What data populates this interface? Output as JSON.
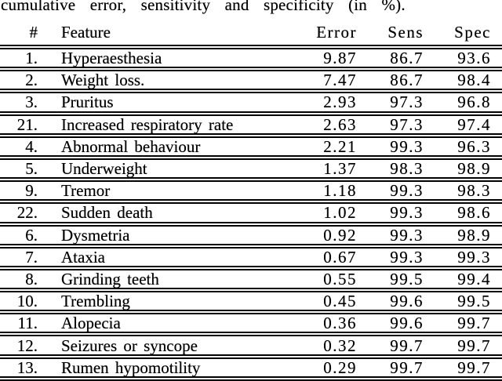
{
  "caption": "cumulative error, sensitivity and specificity (in %).",
  "table": {
    "columns": [
      "#",
      "Feature",
      "Error",
      "Sens",
      "Spec"
    ],
    "rows": [
      {
        "num": "1.",
        "feature": "Hyperaesthesia",
        "error": "9.87",
        "sens": "86.7",
        "spec": "93.6"
      },
      {
        "num": "2.",
        "feature": "Weight loss.",
        "error": "7.47",
        "sens": "86.7",
        "spec": "98.4"
      },
      {
        "num": "3.",
        "feature": "Pruritus",
        "error": "2.93",
        "sens": "97.3",
        "spec": "96.8"
      },
      {
        "num": "21.",
        "feature": "Increased respiratory rate",
        "error": "2.63",
        "sens": "97.3",
        "spec": "97.4"
      },
      {
        "num": "4.",
        "feature": "Abnormal behaviour",
        "error": "2.21",
        "sens": "99.3",
        "spec": "96.3"
      },
      {
        "num": "5.",
        "feature": "Underweight",
        "error": "1.37",
        "sens": "98.3",
        "spec": "98.9"
      },
      {
        "num": "9.",
        "feature": "Tremor",
        "error": "1.18",
        "sens": "99.3",
        "spec": "98.3"
      },
      {
        "num": "22.",
        "feature": "Sudden death",
        "error": "1.02",
        "sens": "99.3",
        "spec": "98.6"
      },
      {
        "num": "6.",
        "feature": "Dysmetria",
        "error": "0.92",
        "sens": "99.3",
        "spec": "98.9"
      },
      {
        "num": "7.",
        "feature": "Ataxia",
        "error": "0.67",
        "sens": "99.3",
        "spec": "99.3"
      },
      {
        "num": "8.",
        "feature": "Grinding teeth",
        "error": "0.55",
        "sens": "99.5",
        "spec": "99.4"
      },
      {
        "num": "10.",
        "feature": "Trembling",
        "error": "0.45",
        "sens": "99.6",
        "spec": "99.5"
      },
      {
        "num": "11.",
        "feature": "Alopecia",
        "error": "0.36",
        "sens": "99.6",
        "spec": "99.7"
      },
      {
        "num": "12.",
        "feature": "Seizures or syncope",
        "error": "0.32",
        "sens": "99.7",
        "spec": "99.7"
      },
      {
        "num": "13.",
        "feature": "Rumen hypomotility",
        "error": "0.29",
        "sens": "99.7",
        "spec": "99.7"
      }
    ]
  },
  "colors": {
    "background": "#ffffff",
    "text": "#000000",
    "rule": "#000000"
  }
}
